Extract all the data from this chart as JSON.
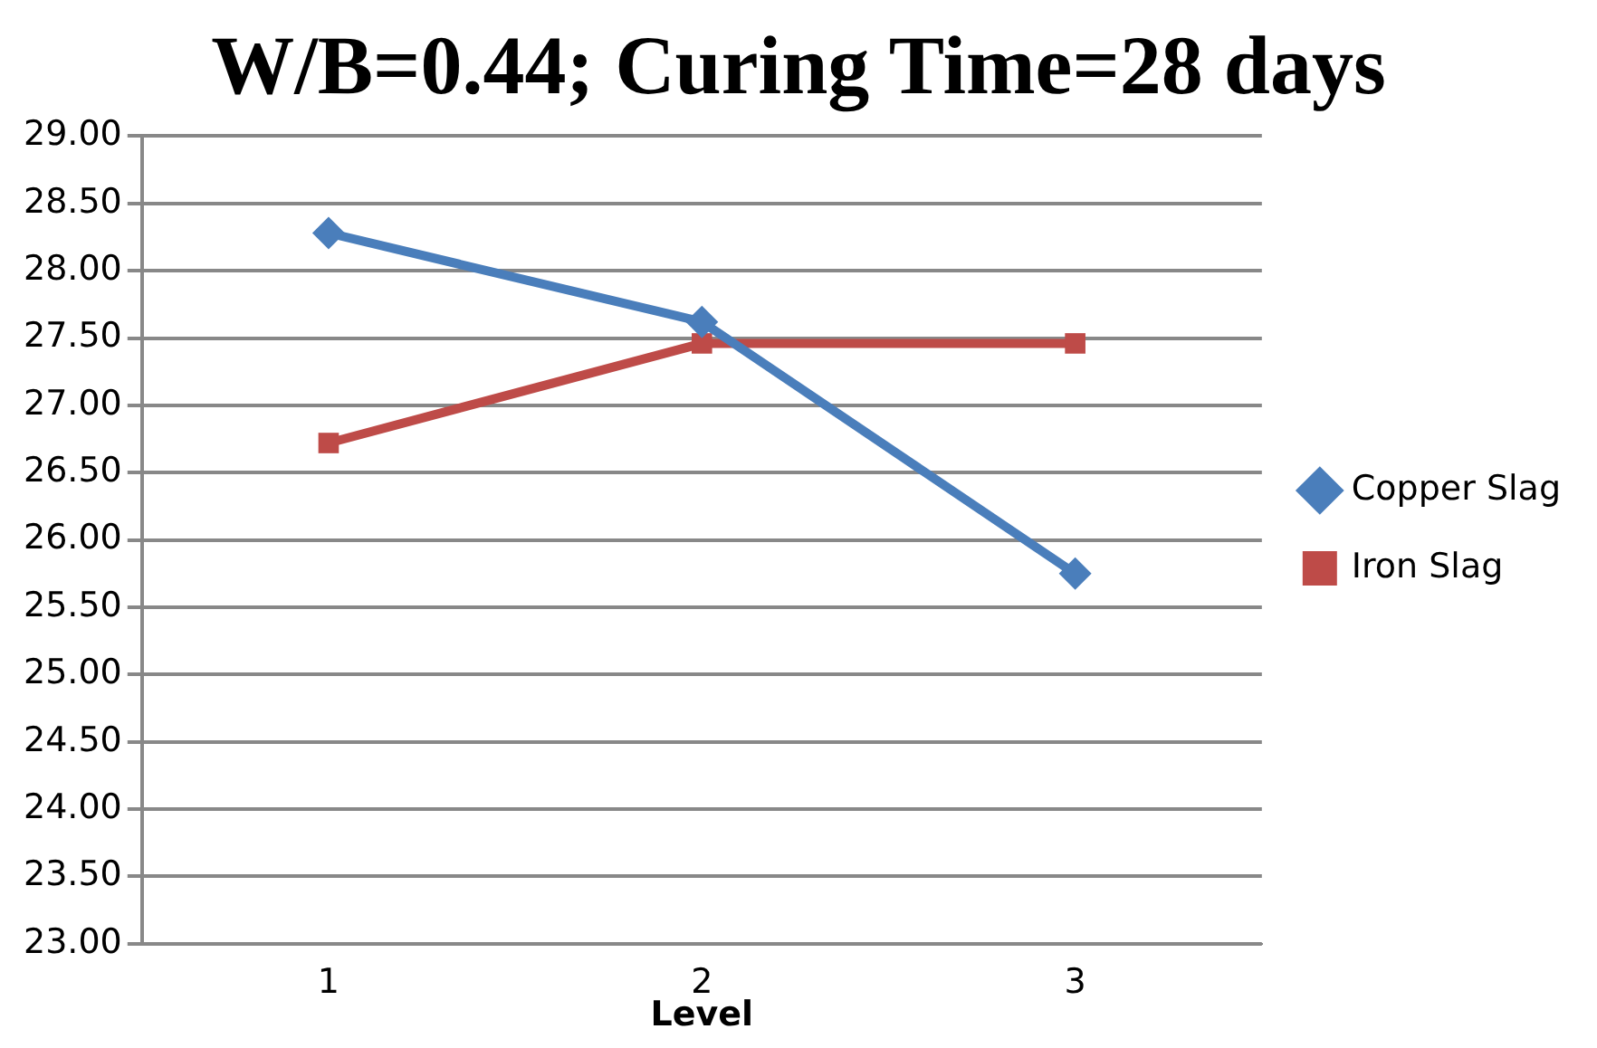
{
  "chart_data": {
    "type": "line",
    "title": "W/B=0.44; Curing Time=28 days",
    "xlabel": "Level",
    "categories": [
      "1",
      "2",
      "3"
    ],
    "series": [
      {
        "name": "Copper Slag",
        "color": "#4a7ebb",
        "marker": "diamond",
        "values": [
          28.28,
          27.62,
          25.75
        ]
      },
      {
        "name": "Iron Slag",
        "color": "#be4b48",
        "marker": "square",
        "values": [
          26.72,
          27.46,
          27.46
        ]
      }
    ],
    "ylim": [
      23,
      29
    ],
    "yticks": [
      {
        "value": 23,
        "label": "23.00"
      },
      {
        "value": 23.5,
        "label": "23.50"
      },
      {
        "value": 24,
        "label": "24.00"
      },
      {
        "value": 24.5,
        "label": "24.50"
      },
      {
        "value": 25,
        "label": "25.00"
      },
      {
        "value": 25.5,
        "label": "25.50"
      },
      {
        "value": 26,
        "label": "26.00"
      },
      {
        "value": 26.5,
        "label": "26.50"
      },
      {
        "value": 27,
        "label": "27.00"
      },
      {
        "value": 27.5,
        "label": "27.50"
      },
      {
        "value": 28,
        "label": "28.00"
      },
      {
        "value": 28.5,
        "label": "28.50"
      },
      {
        "value": 29,
        "label": "29.00"
      }
    ],
    "grid": "y",
    "legend": "right",
    "line_style": "solid"
  }
}
